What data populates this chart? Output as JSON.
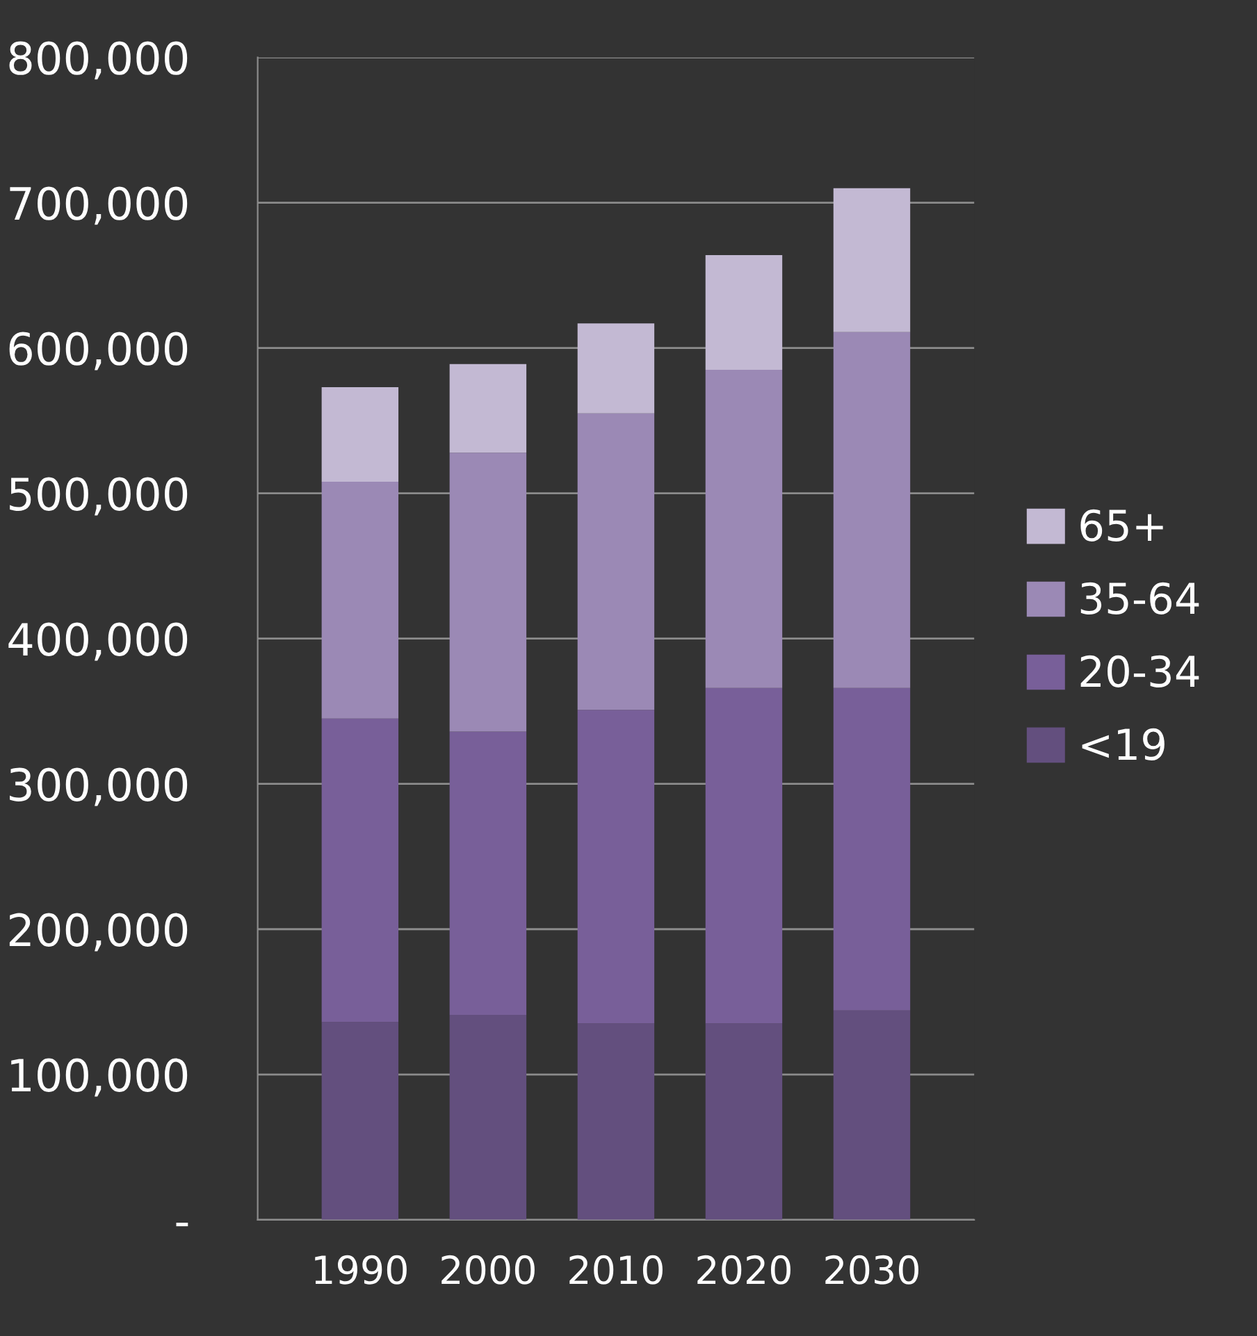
{
  "chart_data": {
    "type": "bar",
    "stacked": true,
    "categories": [
      "1990",
      "2000",
      "2010",
      "2020",
      "2030"
    ],
    "series": [
      {
        "name": "<19",
        "color": "#634f7e",
        "values": [
          136000,
          141000,
          135000,
          135000,
          144000
        ]
      },
      {
        "name": "20-34",
        "color": "#785f99",
        "values": [
          209000,
          195000,
          216000,
          231000,
          222000
        ]
      },
      {
        "name": "35-64",
        "color": "#9b89b5",
        "values": [
          163000,
          192000,
          204000,
          219000,
          245000
        ]
      },
      {
        "name": "65+",
        "color": "#c3b9d3",
        "values": [
          65000,
          61000,
          62000,
          79000,
          99000
        ]
      }
    ],
    "ylim": [
      0,
      800000
    ],
    "yticks": [
      {
        "value": 0,
        "label": "-"
      },
      {
        "value": 100000,
        "label": "100,000"
      },
      {
        "value": 200000,
        "label": "200,000"
      },
      {
        "value": 300000,
        "label": "300,000"
      },
      {
        "value": 400000,
        "label": "400,000"
      },
      {
        "value": 500000,
        "label": "500,000"
      },
      {
        "value": 600000,
        "label": "600,000"
      },
      {
        "value": 700000,
        "label": "700,000"
      },
      {
        "value": 800000,
        "label": "800,000"
      }
    ],
    "grid": "y",
    "legend": "right"
  }
}
